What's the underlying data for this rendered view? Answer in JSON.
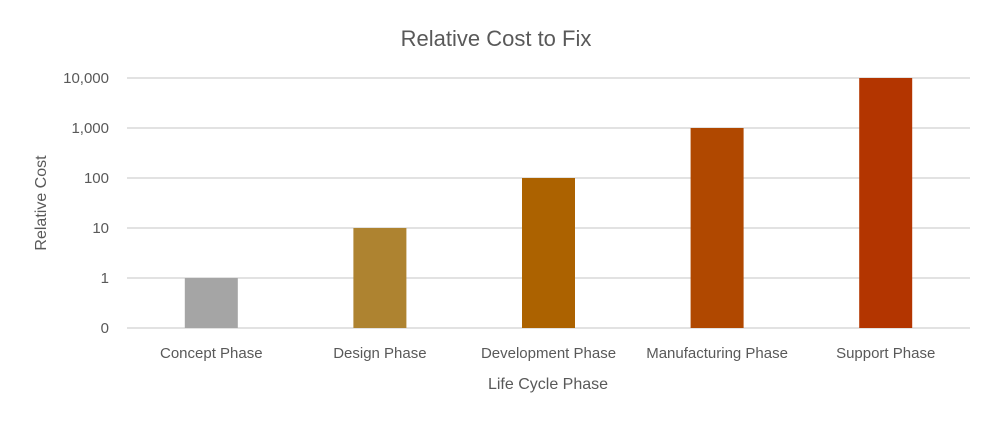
{
  "chart_data": {
    "type": "bar",
    "title": "Relative Cost to Fix",
    "xlabel": "Life Cycle Phase",
    "ylabel": "Relative Cost",
    "yscale": "log",
    "ylim": [
      0.1,
      10000
    ],
    "yticks": [
      0.1,
      1,
      10,
      100,
      1000,
      10000
    ],
    "ytick_labels": [
      "0",
      "1",
      "10",
      "100",
      "1,000",
      "10,000"
    ],
    "grid": true,
    "legend": "none",
    "categories": [
      "Concept Phase",
      "Design Phase",
      "Development Phase",
      "Manufacturing Phase",
      "Support Phase"
    ],
    "values": [
      1,
      10,
      100,
      1000,
      10000
    ],
    "colors": [
      "#a5a5a5",
      "#ae8330",
      "#ac6200",
      "#b04800",
      "#b33500"
    ]
  }
}
